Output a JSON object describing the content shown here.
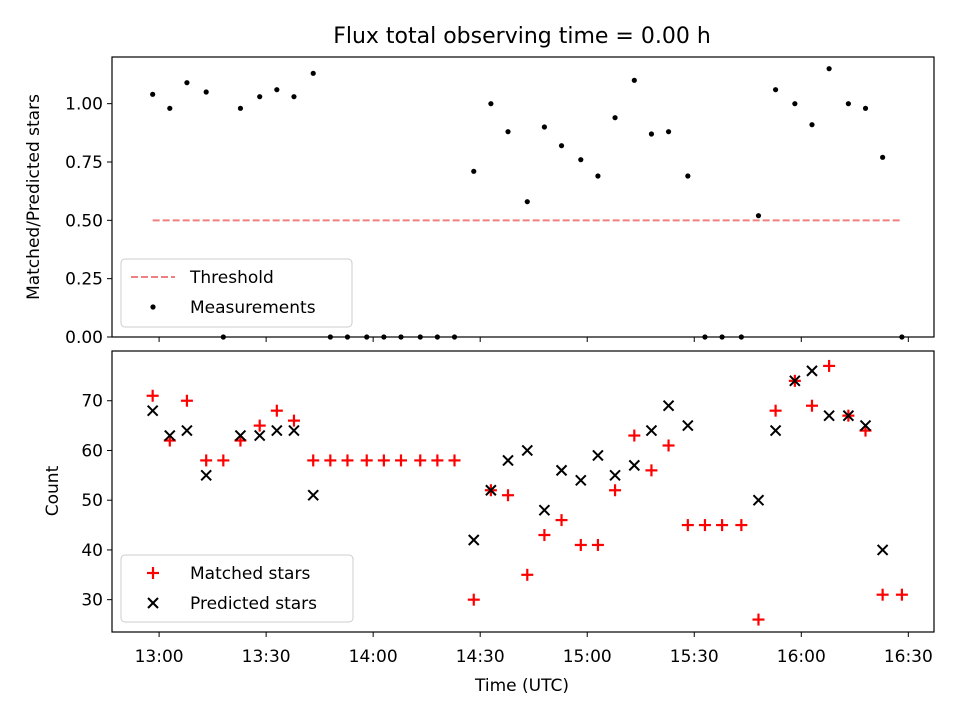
{
  "chart_data": [
    {
      "type": "line+scatter",
      "title": "Flux total observing time = 0.00 h",
      "xlabel": "",
      "ylabel": "Matched/Predicted stars",
      "ylim": [
        0,
        1.2
      ],
      "yticks": [
        0.0,
        0.25,
        0.5,
        0.75,
        1.0
      ],
      "ytick_labels": [
        "0.00",
        "0.25",
        "0.50",
        "0.75",
        "1.00"
      ],
      "x_unit": "hours (UTC)",
      "xlim": [
        12.78,
        16.62
      ],
      "legend": {
        "position": "lower-left",
        "entries": [
          "Threshold",
          "Measurements"
        ]
      },
      "threshold": {
        "name": "Threshold",
        "color": "#f08080",
        "x": [
          12.97,
          16.47
        ],
        "y": 0.5
      },
      "series": [
        {
          "name": "Measurements",
          "color": "#000000",
          "x": [
            12.97,
            13.05,
            13.13,
            13.22,
            13.3,
            13.38,
            13.47,
            13.55,
            13.63,
            13.72,
            13.8,
            13.88,
            13.97,
            14.05,
            14.13,
            14.22,
            14.3,
            14.38,
            14.47,
            14.55,
            14.63,
            14.72,
            14.8,
            14.88,
            14.97,
            15.05,
            15.13,
            15.22,
            15.3,
            15.38,
            15.47,
            15.55,
            15.63,
            15.72,
            15.8,
            15.88,
            15.97,
            16.05,
            16.13,
            16.22,
            16.3,
            16.38,
            16.47
          ],
          "y": [
            1.04,
            0.98,
            1.09,
            1.05,
            0.0,
            0.98,
            1.03,
            1.06,
            1.03,
            1.13,
            0.0,
            0.0,
            0.0,
            0.0,
            0.0,
            0.0,
            0.0,
            0.0,
            0.71,
            1.0,
            0.88,
            0.58,
            0.9,
            0.82,
            0.76,
            0.69,
            0.94,
            1.1,
            0.87,
            0.88,
            0.69,
            0.0,
            0.0,
            0.0,
            0.52,
            1.06,
            1.0,
            0.91,
            1.15,
            1.0,
            0.98,
            0.77,
            0.0
          ]
        }
      ]
    },
    {
      "type": "scatter",
      "title": "",
      "xlabel": "Time (UTC)",
      "ylabel": "Count",
      "ylim": [
        23.5,
        80
      ],
      "yticks": [
        30,
        40,
        50,
        60,
        70
      ],
      "xticks": [
        13.0,
        13.5,
        14.0,
        14.5,
        15.0,
        15.5,
        16.0,
        16.5
      ],
      "xtick_labels": [
        "13:00",
        "13:30",
        "14:00",
        "14:30",
        "15:00",
        "15:30",
        "16:00",
        "16:30"
      ],
      "legend": {
        "position": "lower-left",
        "entries": [
          "Matched stars",
          "Predicted stars"
        ]
      },
      "series": [
        {
          "name": "Matched stars",
          "marker": "+",
          "color": "#ff0000",
          "x": [
            12.97,
            13.05,
            13.13,
            13.22,
            13.3,
            13.38,
            13.47,
            13.55,
            13.63,
            13.72,
            13.8,
            13.88,
            13.97,
            14.05,
            14.13,
            14.22,
            14.3,
            14.38,
            14.47,
            14.55,
            14.63,
            14.72,
            14.8,
            14.88,
            14.97,
            15.05,
            15.13,
            15.22,
            15.3,
            15.38,
            15.47,
            15.55,
            15.63,
            15.72,
            15.8,
            15.88,
            15.97,
            16.05,
            16.13,
            16.22,
            16.3,
            16.38,
            16.47
          ],
          "y": [
            71,
            62,
            70,
            58,
            58,
            62,
            65,
            68,
            66,
            58,
            58,
            58,
            58,
            58,
            58,
            58,
            58,
            58,
            30,
            52,
            51,
            35,
            43,
            46,
            41,
            41,
            52,
            63,
            56,
            61,
            45,
            45,
            45,
            45,
            26,
            68,
            74,
            69,
            77,
            67,
            64,
            31,
            31
          ]
        },
        {
          "name": "Predicted stars",
          "marker": "x",
          "color": "#000000",
          "x": [
            12.97,
            13.05,
            13.13,
            13.22,
            13.38,
            13.47,
            13.55,
            13.63,
            13.72,
            14.47,
            14.55,
            14.63,
            14.72,
            14.8,
            14.88,
            14.97,
            15.05,
            15.13,
            15.22,
            15.3,
            15.38,
            15.47,
            15.8,
            15.88,
            15.97,
            16.05,
            16.13,
            16.22,
            16.3,
            16.38
          ],
          "y": [
            68,
            63,
            64,
            55,
            63,
            63,
            64,
            64,
            51,
            42,
            52,
            58,
            60,
            48,
            56,
            54,
            59,
            55,
            57,
            64,
            69,
            65,
            50,
            64,
            74,
            76,
            67,
            67,
            65,
            40
          ]
        }
      ]
    }
  ]
}
